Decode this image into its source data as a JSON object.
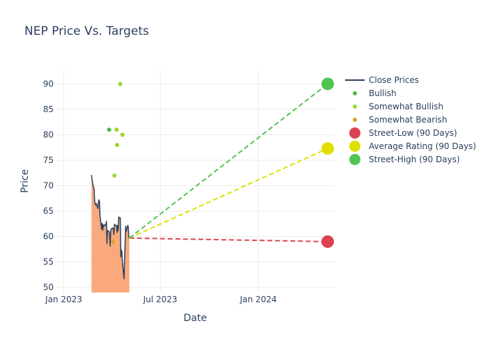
{
  "chart_data": {
    "type": "line",
    "title": "NEP Price Vs. Targets",
    "xlabel": "Date",
    "ylabel": "Price",
    "x_range": [
      "2022-12-17",
      "2024-05-23"
    ],
    "ylim": [
      49,
      92.8
    ],
    "x_ticks": [
      {
        "date": "2023-01-01",
        "label": "Jan 2023"
      },
      {
        "date": "2023-07-01",
        "label": "Jul 2023"
      },
      {
        "date": "2024-01-01",
        "label": "Jan 2024"
      }
    ],
    "y_ticks": [
      50,
      55,
      60,
      65,
      70,
      75,
      80,
      85,
      90
    ],
    "grid": true,
    "legend_position": "right",
    "close_prices": {
      "name": "Close Prices",
      "color": "#2a3f5f",
      "fill_color": "#f9a97b",
      "points": [
        [
          "2023-02-22",
          72.1
        ],
        [
          "2023-02-23",
          71.2
        ],
        [
          "2023-02-24",
          70.6
        ],
        [
          "2023-02-27",
          69.2
        ],
        [
          "2023-02-28",
          66.8
        ],
        [
          "2023-03-01",
          66.4
        ],
        [
          "2023-03-02",
          66.2
        ],
        [
          "2023-03-03",
          66.5
        ],
        [
          "2023-03-06",
          65.5
        ],
        [
          "2023-03-07",
          66.8
        ],
        [
          "2023-03-08",
          67.2
        ],
        [
          "2023-03-09",
          66.9
        ],
        [
          "2023-03-10",
          64.0
        ],
        [
          "2023-03-13",
          61.5
        ],
        [
          "2023-03-14",
          62.6
        ],
        [
          "2023-03-15",
          61.2
        ],
        [
          "2023-03-16",
          62.3
        ],
        [
          "2023-03-17",
          62.0
        ],
        [
          "2023-03-20",
          62.4
        ],
        [
          "2023-03-21",
          62.2
        ],
        [
          "2023-03-22",
          63.0
        ],
        [
          "2023-03-23",
          58.6
        ],
        [
          "2023-03-24",
          61.2
        ],
        [
          "2023-03-27",
          61.0
        ],
        [
          "2023-03-28",
          60.4
        ],
        [
          "2023-03-29",
          58.1
        ],
        [
          "2023-03-30",
          61.0
        ],
        [
          "2023-03-31",
          61.5
        ],
        [
          "2023-04-03",
          61.7
        ],
        [
          "2023-04-04",
          61.4
        ],
        [
          "2023-04-05",
          60.4
        ],
        [
          "2023-04-06",
          62.4
        ],
        [
          "2023-04-10",
          62.1
        ],
        [
          "2023-04-11",
          60.8
        ],
        [
          "2023-04-12",
          62.2
        ],
        [
          "2023-04-13",
          61.2
        ],
        [
          "2023-04-14",
          63.8
        ],
        [
          "2023-04-17",
          63.7
        ],
        [
          "2023-04-18",
          56.0
        ],
        [
          "2023-04-19",
          57.4
        ],
        [
          "2023-04-20",
          56.9
        ],
        [
          "2023-04-21",
          55.0
        ],
        [
          "2023-04-24",
          51.7
        ],
        [
          "2023-04-25",
          55.4
        ],
        [
          "2023-04-26",
          58.5
        ],
        [
          "2023-04-27",
          62.0
        ],
        [
          "2023-04-28",
          61.0
        ],
        [
          "2023-05-01",
          62.2
        ],
        [
          "2023-05-02",
          61.9
        ],
        [
          "2023-05-03",
          59.8
        ],
        [
          "2023-05-04",
          59.8
        ]
      ]
    },
    "ratings": [
      {
        "date": "2023-03-27",
        "value": 81,
        "rating": "Bullish"
      },
      {
        "date": "2023-04-06",
        "value": 72,
        "rating": "Somewhat Bullish"
      },
      {
        "date": "2023-04-10",
        "value": 81,
        "rating": "Somewhat Bullish"
      },
      {
        "date": "2023-04-11",
        "value": 78,
        "rating": "Somewhat Bullish"
      },
      {
        "date": "2023-04-17",
        "value": 90,
        "rating": "Somewhat Bullish"
      },
      {
        "date": "2023-04-21",
        "value": 80,
        "rating": "Somewhat Bullish"
      },
      {
        "date": "2023-04-03",
        "value": 59,
        "rating": "Somewhat Bearish"
      }
    ],
    "target_lines": {
      "start": [
        "2023-05-04",
        59.7
      ],
      "end_date": "2024-05-10",
      "street_low": 59,
      "average": 77.3,
      "street_high": 90
    },
    "legend": [
      {
        "label": "Close Prices",
        "kind": "line",
        "color": "#2a3f5f"
      },
      {
        "label": "Bullish",
        "kind": "small-dot",
        "color": "#4cba4c"
      },
      {
        "label": "Somewhat Bullish",
        "kind": "small-dot",
        "color": "#99d531"
      },
      {
        "label": "Somewhat Bearish",
        "kind": "small-dot",
        "color": "#e39c2a"
      },
      {
        "label": "Street-Low (90 Days)",
        "kind": "big-dot",
        "color": "#dc4250"
      },
      {
        "label": "Average Rating (90 Days)",
        "kind": "big-dot",
        "color": "#e0e000"
      },
      {
        "label": "Street-High (90 Days)",
        "kind": "big-dot",
        "color": "#52c452"
      }
    ],
    "colors": {
      "Bullish": "#4cba4c",
      "Somewhat Bullish": "#99d531",
      "Somewhat Bearish": "#e39c2a",
      "street_low": "#dc4250",
      "average": "#e0e000",
      "street_high": "#52c452"
    }
  }
}
